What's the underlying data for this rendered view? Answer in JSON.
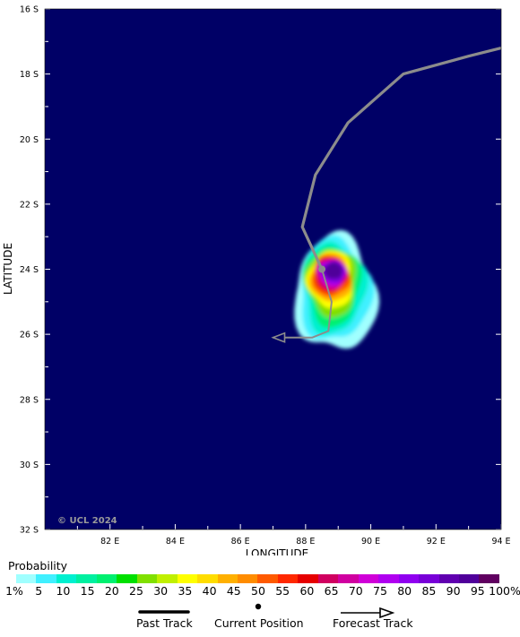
{
  "map": {
    "ocean_color": "#000066",
    "track_color": "#8c8c8c",
    "x_axis": {
      "title": "LONGITUDE",
      "ticks": [
        "82 E",
        "84 E",
        "86 E",
        "88 E",
        "90 E",
        "92 E",
        "94 E"
      ],
      "range": [
        80,
        94
      ]
    },
    "y_axis": {
      "title": "LATITUDE",
      "ticks": [
        "16 S",
        "18 S",
        "20 S",
        "22 S",
        "24 S",
        "26 S",
        "28 S",
        "30 S",
        "32 S"
      ],
      "range": [
        -32,
        -16
      ]
    },
    "copyright": "© UCL 2024"
  },
  "track": {
    "past": [
      [
        94.0,
        -17.2
      ],
      [
        93.0,
        -17.45
      ],
      [
        91.0,
        -18.0
      ],
      [
        89.3,
        -19.5
      ],
      [
        88.3,
        -21.1
      ],
      [
        87.9,
        -22.7
      ],
      [
        88.5,
        -24.0
      ]
    ],
    "current_position": [
      88.5,
      -24.0
    ],
    "forecast": [
      [
        88.5,
        -24.0
      ],
      [
        88.8,
        -25.0
      ],
      [
        88.7,
        -25.9
      ],
      [
        88.2,
        -26.1
      ],
      [
        87.0,
        -26.1
      ]
    ]
  },
  "strike_probability": {
    "center": [
      88.85,
      -24.05
    ],
    "levels_pct": [
      1,
      5,
      10,
      20,
      30,
      40,
      50,
      60,
      70,
      80,
      90
    ]
  },
  "legend": {
    "title": "Probability",
    "colors": [
      "#a0ffff",
      "#40f0ff",
      "#00f0d0",
      "#00f0a0",
      "#00f070",
      "#00e000",
      "#80e000",
      "#c0f000",
      "#ffff00",
      "#ffdd00",
      "#ffb000",
      "#ff8c00",
      "#ff5a00",
      "#ff2800",
      "#e60000",
      "#d00060",
      "#d000a0",
      "#d000d8",
      "#b000f0",
      "#9000f0",
      "#7800d8",
      "#6000b0",
      "#50009a",
      "#600060"
    ],
    "labels": [
      "1%",
      "5",
      "10",
      "15",
      "20",
      "25",
      "30",
      "35",
      "40",
      "45",
      "50",
      "55",
      "60",
      "65",
      "70",
      "75",
      "80",
      "85",
      "90",
      "95",
      "100%"
    ],
    "past_track_label": "Past Track",
    "current_position_label": "Current Position",
    "forecast_track_label": "Forecast Track"
  }
}
